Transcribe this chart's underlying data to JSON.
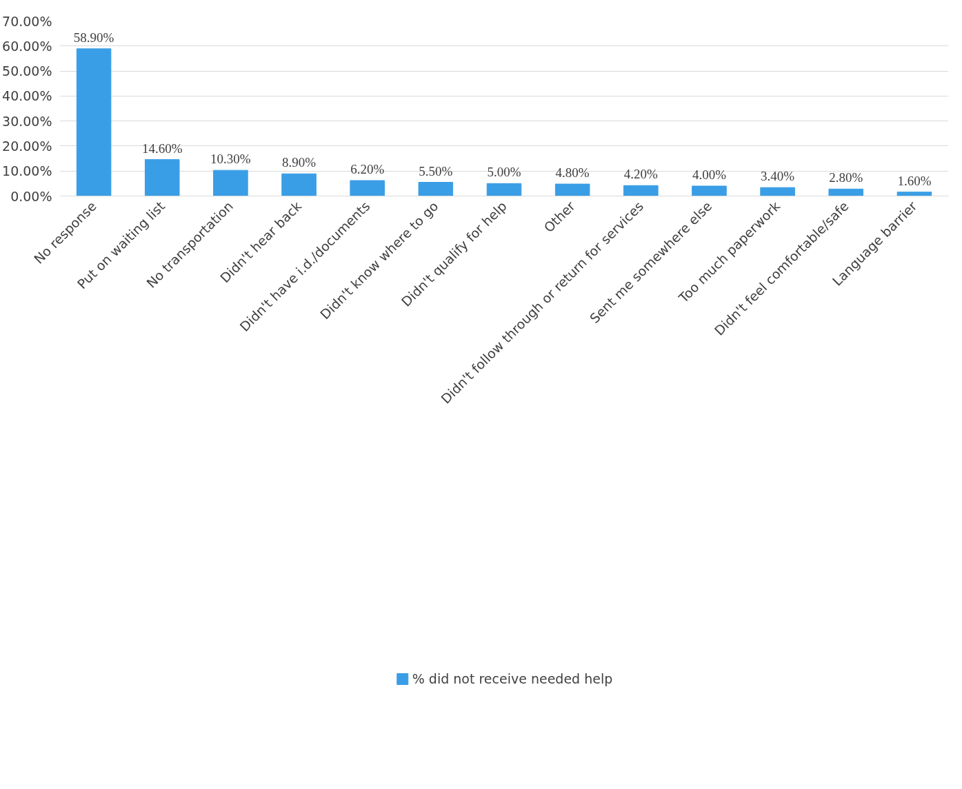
{
  "chart_data": {
    "type": "bar",
    "categories": [
      "No response",
      "Put on waiting list",
      "No transportation",
      "Didn't hear back",
      "Didn't have i.d./documents",
      "Didn't know where to go",
      "Didn't qualify for help",
      "Other",
      "Didn't follow through or return for services",
      "Sent me somewhere else",
      "Too much paperwork",
      "Didn't feel comfortable/safe",
      "Language barrier"
    ],
    "series": [
      {
        "name": "% did not receive needed help",
        "color": "#3a9ee6",
        "values": [
          58.9,
          14.6,
          10.3,
          8.9,
          6.2,
          5.5,
          5.0,
          4.8,
          4.2,
          4.0,
          3.4,
          2.8,
          1.6
        ]
      }
    ],
    "value_labels": [
      "58.90%",
      "14.60%",
      "10.30%",
      "8.90%",
      "6.20%",
      "5.50%",
      "5.00%",
      "4.80%",
      "4.20%",
      "4.00%",
      "3.40%",
      "2.80%",
      "1.60%"
    ],
    "ylim": [
      0,
      70
    ],
    "yticks": [
      {
        "value": 0,
        "label": "0.00%"
      },
      {
        "value": 10,
        "label": "10.00%"
      },
      {
        "value": 20,
        "label": "20.00%"
      },
      {
        "value": 30,
        "label": "30.00%"
      },
      {
        "value": 40,
        "label": "40.00%"
      },
      {
        "value": 50,
        "label": "50.00%"
      },
      {
        "value": 60,
        "label": "60.00%"
      },
      {
        "value": 70,
        "label": "70.00%"
      }
    ],
    "grid": "y",
    "legend": "bottom"
  }
}
